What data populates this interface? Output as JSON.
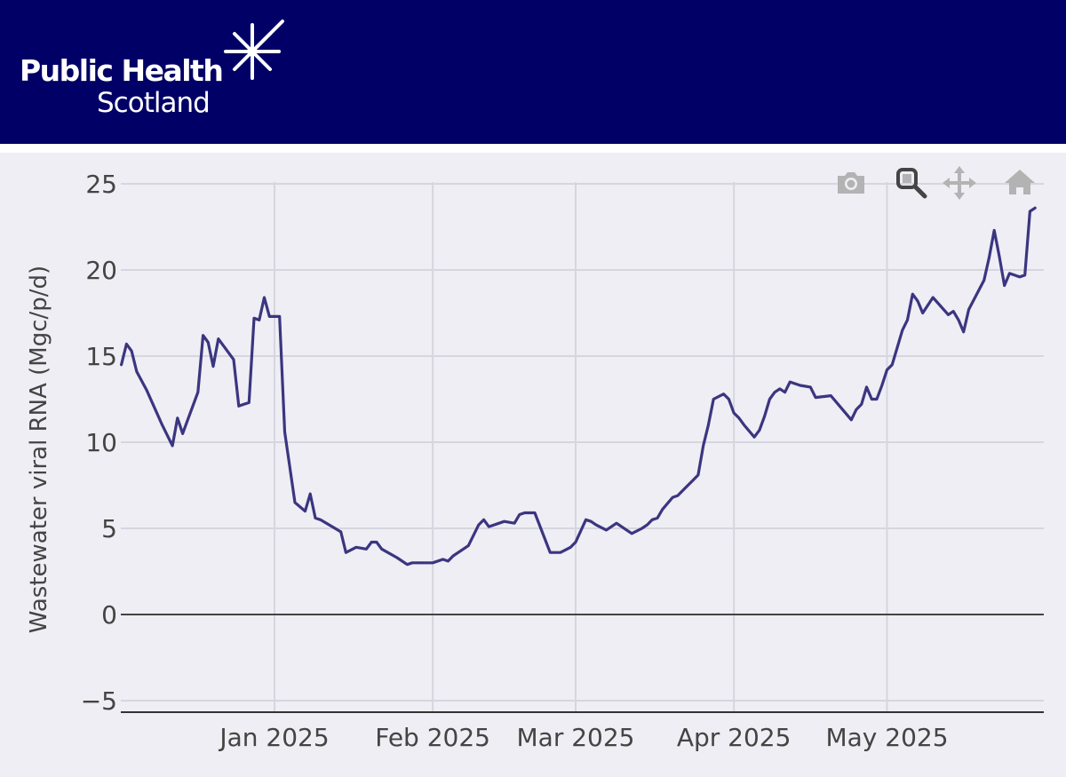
{
  "header": {
    "logo_line1": "Public Health",
    "logo_line2": "Scotland",
    "background_color": "#010066"
  },
  "modebar": {
    "buttons": [
      {
        "name": "camera-icon",
        "label": "Download plot as a png"
      },
      {
        "name": "zoom-icon",
        "label": "Zoom",
        "active": true
      },
      {
        "name": "pan-icon",
        "label": "Pan"
      },
      {
        "name": "home-icon",
        "label": "Reset axes"
      }
    ]
  },
  "chart_data": {
    "type": "line",
    "title": "",
    "xlabel": "",
    "ylabel": "Wastewater viral RNA (Mgc/p/d)",
    "ylim": [
      -5.5,
      25
    ],
    "xlim": [
      "2024-12-02",
      "2025-05-31"
    ],
    "y_ticks": [
      "25",
      "20",
      "15",
      "10",
      "5",
      "0",
      "−5"
    ],
    "y_tick_values": [
      25,
      20,
      15,
      10,
      5,
      0,
      -5
    ],
    "x_ticks": [
      "Jan 2025",
      "Feb 2025",
      "Mar 2025",
      "Apr 2025",
      "May 2025"
    ],
    "x_tick_dates": [
      "2025-01-01",
      "2025-02-01",
      "2025-03-01",
      "2025-04-01",
      "2025-05-01"
    ],
    "grid": true,
    "line_color": "#3b3580",
    "series": [
      {
        "x": [
          "2024-12-02",
          "2024-12-03",
          "2024-12-04",
          "2024-12-05",
          "2024-12-07",
          "2024-12-10",
          "2024-12-12",
          "2024-12-13",
          "2024-12-14",
          "2024-12-17",
          "2024-12-18",
          "2024-12-19",
          "2024-12-20",
          "2024-12-21",
          "2024-12-24",
          "2024-12-25",
          "2024-12-26",
          "2024-12-27",
          "2024-12-28",
          "2024-12-29",
          "2024-12-30",
          "2024-12-31",
          "2025-01-02",
          "2025-01-03",
          "2025-01-05",
          "2025-01-07",
          "2025-01-08",
          "2025-01-09",
          "2025-01-10",
          "2025-01-14",
          "2025-01-15",
          "2025-01-17",
          "2025-01-19",
          "2025-01-20",
          "2025-01-21",
          "2025-01-22",
          "2025-01-25",
          "2025-01-27",
          "2025-01-28",
          "2025-01-30",
          "2025-02-01",
          "2025-02-03",
          "2025-02-04",
          "2025-02-05",
          "2025-02-07",
          "2025-02-08",
          "2025-02-10",
          "2025-02-11",
          "2025-02-12",
          "2025-02-14",
          "2025-02-15",
          "2025-02-17",
          "2025-02-18",
          "2025-02-19",
          "2025-02-21",
          "2025-02-24",
          "2025-02-26",
          "2025-02-28",
          "2025-03-01",
          "2025-03-03",
          "2025-03-04",
          "2025-03-05",
          "2025-03-07",
          "2025-03-09",
          "2025-03-10",
          "2025-03-12",
          "2025-03-14",
          "2025-03-15",
          "2025-03-16",
          "2025-03-17",
          "2025-03-18",
          "2025-03-20",
          "2025-03-21",
          "2025-03-22",
          "2025-03-23",
          "2025-03-24",
          "2025-03-25",
          "2025-03-26",
          "2025-03-27",
          "2025-03-28",
          "2025-03-30",
          "2025-03-31",
          "2025-04-01",
          "2025-04-02",
          "2025-04-03",
          "2025-04-05",
          "2025-04-06",
          "2025-04-07",
          "2025-04-08",
          "2025-04-09",
          "2025-04-10",
          "2025-04-11",
          "2025-04-12",
          "2025-04-14",
          "2025-04-16",
          "2025-04-17",
          "2025-04-20",
          "2025-04-22",
          "2025-04-24",
          "2025-04-25",
          "2025-04-26",
          "2025-04-27",
          "2025-04-28",
          "2025-04-29",
          "2025-04-30",
          "2025-05-01",
          "2025-05-02",
          "2025-05-04",
          "2025-05-05",
          "2025-05-06",
          "2025-05-07",
          "2025-05-08",
          "2025-05-10",
          "2025-05-13",
          "2025-05-14",
          "2025-05-15",
          "2025-05-16",
          "2025-05-17",
          "2025-05-20",
          "2025-05-21",
          "2025-05-22",
          "2025-05-23",
          "2025-05-24",
          "2025-05-25",
          "2025-05-27",
          "2025-05-28",
          "2025-05-29",
          "2025-05-30"
        ],
        "y": [
          14.5,
          15.7,
          15.3,
          14.1,
          13.0,
          11.0,
          9.8,
          11.4,
          10.5,
          12.9,
          16.2,
          15.8,
          14.4,
          16.0,
          14.8,
          12.1,
          12.2,
          12.3,
          17.2,
          17.1,
          18.4,
          17.3,
          17.3,
          10.6,
          6.5,
          6.0,
          7.0,
          5.6,
          5.5,
          4.8,
          3.6,
          3.9,
          3.8,
          4.2,
          4.2,
          3.8,
          3.3,
          2.9,
          3.0,
          3.0,
          3.0,
          3.2,
          3.1,
          3.4,
          3.8,
          4.0,
          5.2,
          5.5,
          5.1,
          5.3,
          5.4,
          5.3,
          5.8,
          5.9,
          5.9,
          3.6,
          3.6,
          3.9,
          4.2,
          5.5,
          5.4,
          5.2,
          4.9,
          5.3,
          5.1,
          4.7,
          5.0,
          5.2,
          5.5,
          5.6,
          6.1,
          6.8,
          6.9,
          7.2,
          7.5,
          7.8,
          8.1,
          9.8,
          11.0,
          12.5,
          12.8,
          12.5,
          11.7,
          11.4,
          11.0,
          10.3,
          10.7,
          11.5,
          12.5,
          12.9,
          13.1,
          12.9,
          13.5,
          13.3,
          13.2,
          12.6,
          12.7,
          12.0,
          11.3,
          11.9,
          12.2,
          13.2,
          12.5,
          12.5,
          13.3,
          14.2,
          14.5,
          16.5,
          17.1,
          18.6,
          18.2,
          17.5,
          18.4,
          17.4,
          17.6,
          17.1,
          16.4,
          17.7,
          19.4,
          20.7,
          22.3,
          20.8,
          19.1,
          19.8,
          19.6,
          19.7,
          23.4,
          23.6
        ]
      }
    ]
  }
}
